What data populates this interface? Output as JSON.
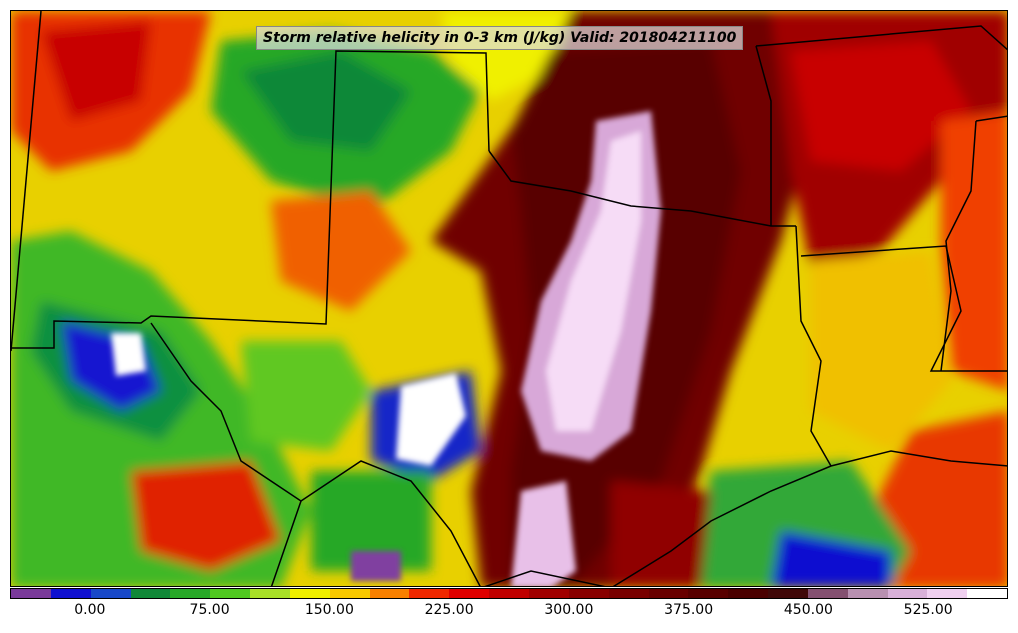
{
  "map": {
    "title": "Storm relative helicity in 0-3 km (J/kg) Valid: 201804211100"
  },
  "colorbar": {
    "colors": [
      "#7a3a9a",
      "#1010d0",
      "#1848c8",
      "#108838",
      "#28a828",
      "#50c820",
      "#a8e028",
      "#f0f000",
      "#f8c800",
      "#f88000",
      "#f02800",
      "#e00000",
      "#c00000",
      "#a00000",
      "#880000",
      "#780000",
      "#680000",
      "#580000",
      "#4a0000",
      "#400808",
      "#845070",
      "#b890b0",
      "#d8b0d8",
      "#f0d0f0",
      "#ffffff"
    ],
    "tick_labels": [
      "0.00",
      "75.00",
      "150.00",
      "225.00",
      "300.00",
      "375.00",
      "450.00",
      "525.00"
    ],
    "tick_values": [
      0,
      75,
      150,
      225,
      300,
      375,
      450,
      525
    ],
    "min": -50,
    "max": 575
  }
}
